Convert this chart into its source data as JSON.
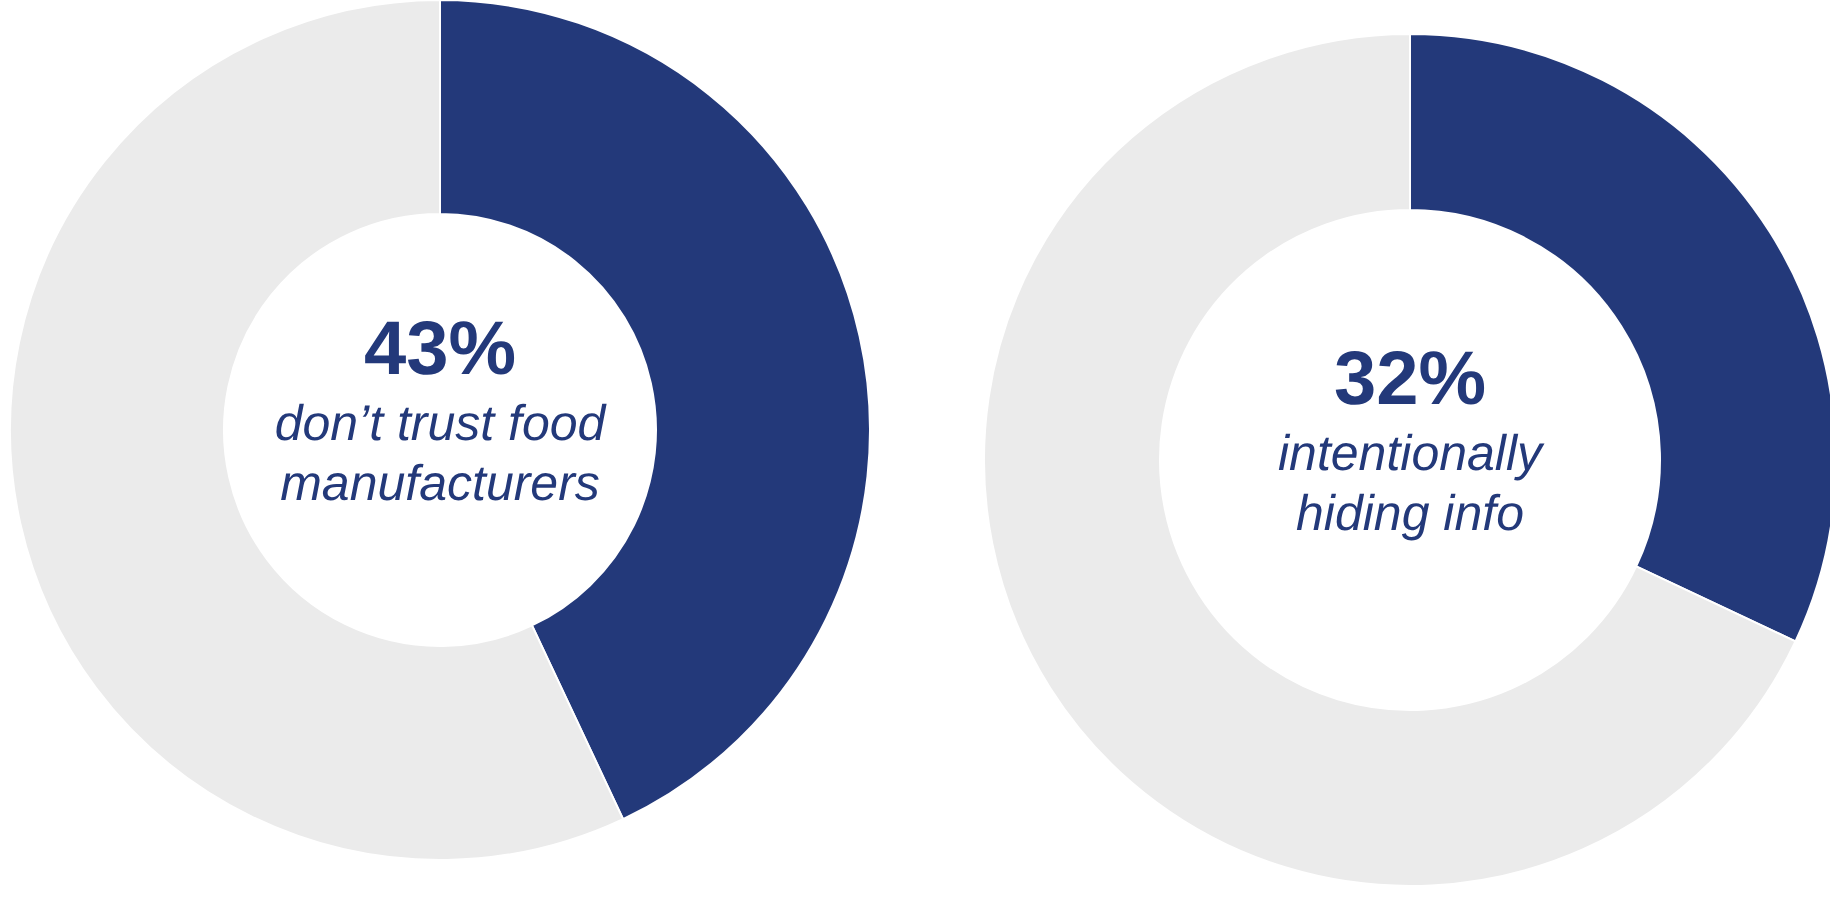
{
  "chart_data": [
    {
      "type": "donut",
      "categories": [
        null,
        null
      ],
      "values": [
        43,
        57
      ],
      "colors": [
        "#23397a",
        "#ebebeb"
      ],
      "value_labels": [
        "43%",
        null
      ],
      "annotations": [
        "don’t trust food manufacturers"
      ]
    },
    {
      "type": "donut",
      "categories": [
        null,
        null
      ],
      "values": [
        32,
        68
      ],
      "colors": [
        "#23397a",
        "#ebebeb"
      ],
      "value_labels": [
        "32%",
        null
      ],
      "annotations": [
        "intentionally hiding info"
      ]
    }
  ]
}
